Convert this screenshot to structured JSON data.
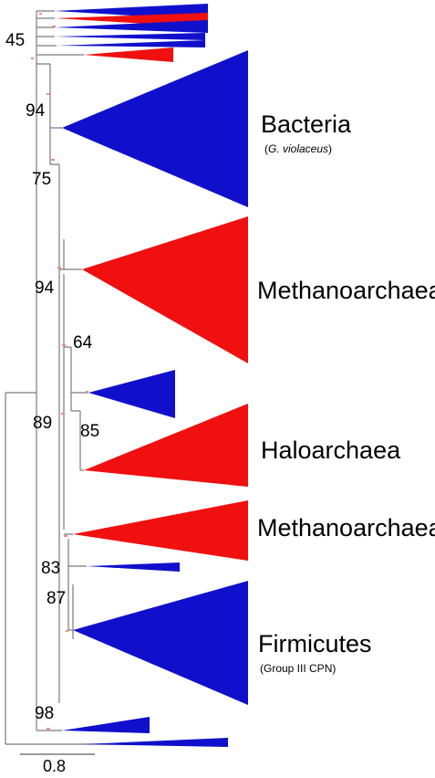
{
  "colors": {
    "bacteria": "#1010cc",
    "archaea": "#f01010",
    "branch": "#7a7a7a",
    "node": "#f08a8a"
  },
  "clades": {
    "bacteria": {
      "name": "Bacteria",
      "sub_prefix": "(",
      "sub_italic": "G. violaceus",
      "sub_suffix": ")"
    },
    "methano1": {
      "name": "Methanoarchaea"
    },
    "halo": {
      "name": "Haloarchaea"
    },
    "methano2": {
      "name": "Methanoarchaea"
    },
    "firmicutes": {
      "name": "Firmicutes",
      "sub": "(Group III CPN)"
    }
  },
  "bootstrap": {
    "b45": "45",
    "b94a": "94",
    "b75": "75",
    "b94b": "94",
    "b64": "64",
    "b89": "89",
    "b85": "85",
    "b83": "83",
    "b87": "87",
    "b98": "98"
  },
  "scale": {
    "value": "0.8"
  }
}
